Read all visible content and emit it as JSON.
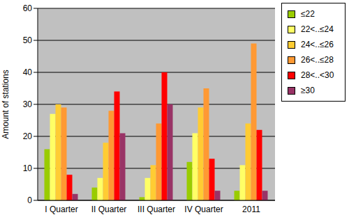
{
  "chart_data": {
    "type": "bar",
    "y_label": "Amount of stations",
    "categories": [
      "I Quarter",
      "II Quarter",
      "III Quarter",
      "IV Quarter",
      "2011"
    ],
    "series": [
      {
        "name": "≤22",
        "color": "#99cc00",
        "values": [
          16,
          4,
          1,
          12,
          3
        ]
      },
      {
        "name": "22<..≤24",
        "color": "#ffff66",
        "values": [
          27,
          7,
          7,
          21,
          11
        ]
      },
      {
        "name": "24<..≤26",
        "color": "#ffcc33",
        "values": [
          30,
          18,
          11,
          29,
          24
        ]
      },
      {
        "name": "26<..≤28",
        "color": "#ff9933",
        "values": [
          29,
          28,
          24,
          35,
          49
        ]
      },
      {
        "name": "28<..<30",
        "color": "#ff0000",
        "values": [
          8,
          34,
          40,
          13,
          22
        ]
      },
      {
        "name": "≥30",
        "color": "#993366",
        "values": [
          2,
          21,
          30,
          3,
          3
        ]
      }
    ],
    "ylim": [
      0,
      60
    ],
    "yticks": [
      0,
      10,
      20,
      30,
      40,
      50,
      60
    ],
    "grid": true,
    "legend": "upper right"
  }
}
